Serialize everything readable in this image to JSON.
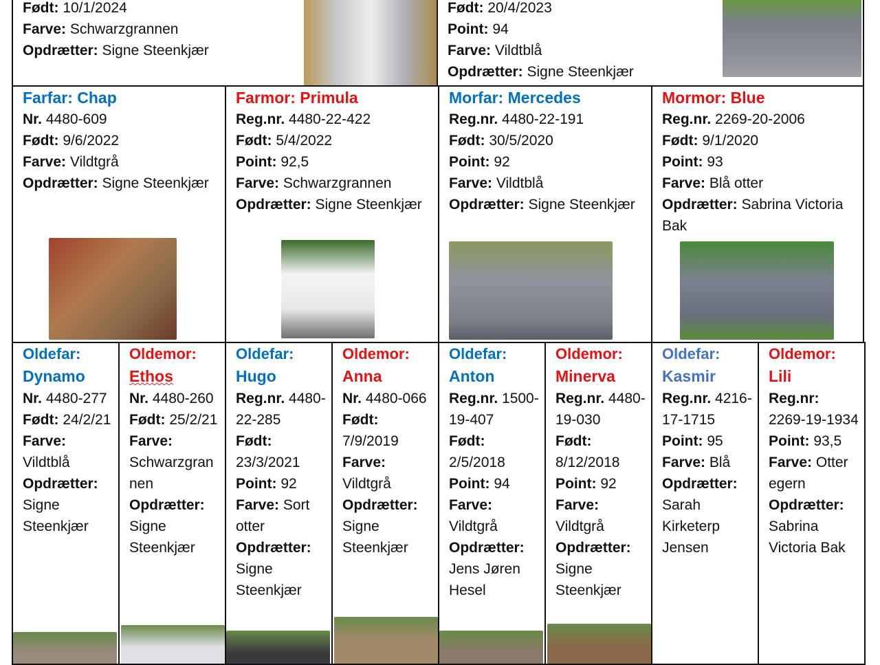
{
  "colors": {
    "male": "#0070c0",
    "male_light": "#4472c4",
    "female": "#e81010",
    "border": "#111111"
  },
  "parents": [
    {
      "fields": [
        {
          "label": "Født:",
          "value": "10/1/2024"
        },
        {
          "label": "Farve:",
          "value": "Schwarzgrannen"
        },
        {
          "label": "Opdrætter:",
          "value": "Signe Steenkjær"
        }
      ],
      "photo": "rabbit-photo-grey-white-on-straw"
    },
    {
      "fields": [
        {
          "label": "Født:",
          "value": "20/4/2023"
        },
        {
          "label": "Point:",
          "value": "94"
        },
        {
          "label": "Farve:",
          "value": "Vildtblå"
        },
        {
          "label": "Opdrætter:",
          "value": "Signe Steenkjær"
        }
      ],
      "photo": "rabbit-photo-blue-grey-on-stone"
    }
  ],
  "grandparents": [
    {
      "role": "Farfar:",
      "name": "Chap",
      "sex": "male",
      "fields": [
        {
          "label": "Nr.",
          "value": "4480-609"
        },
        {
          "label": "Født:",
          "value": "9/6/2022"
        },
        {
          "label": "Farve:",
          "value": "Vildtgrå"
        },
        {
          "label": "Opdrætter:",
          "value": "Signe Steenkjær"
        }
      ],
      "photo": "rabbit-photo-brown-by-brick-wall"
    },
    {
      "role": "Farmor:",
      "name": "Primula",
      "sex": "female",
      "fields": [
        {
          "label": "Reg.nr.",
          "value": "4480-22-422"
        },
        {
          "label": "Født:",
          "value": "5/4/2022"
        },
        {
          "label": "Point:",
          "value": "92,5"
        },
        {
          "label": "Farve:",
          "value": "Schwarzgrannen"
        },
        {
          "label": "Opdrætter:",
          "value": "Signe Steenkjær"
        }
      ],
      "photo": "rabbit-photo-white"
    },
    {
      "role": "Morfar:",
      "name": "Mercedes",
      "sex": "male",
      "fields": [
        {
          "label": "Reg.nr.",
          "value": "4480-22-191"
        },
        {
          "label": "Født:",
          "value": "30/5/2020"
        },
        {
          "label": "Point:",
          "value": "92"
        },
        {
          "label": "Farve:",
          "value": "Vildtblå"
        },
        {
          "label": "Opdrætter:",
          "value": "Signe Steenkjær"
        }
      ],
      "photo": "rabbit-photo-grey"
    },
    {
      "role": "Mormor:",
      "name": "Blue",
      "sex": "female",
      "fields": [
        {
          "label": "Reg.nr.",
          "value": "2269-20-2006"
        },
        {
          "label": "Født:",
          "value": "9/1/2020"
        },
        {
          "label": "Point:",
          "value": "93"
        },
        {
          "label": "Farve:",
          "value": "Blå otter"
        },
        {
          "label": "Opdrætter:",
          "value": "Sabrina Victoria Bak"
        }
      ],
      "photo": "rabbit-photo-blue-on-grass"
    }
  ],
  "great_grandparents": [
    {
      "role": "Oldefar:",
      "name": "Dynamo",
      "sex": "male",
      "fields": [
        {
          "label": "Nr.",
          "value": "4480-277"
        },
        {
          "label": "Født:",
          "value": "24/2/21"
        },
        {
          "label": "Farve:",
          "value": "Vildtblå"
        },
        {
          "label": "Opdrætter:",
          "value": "Signe Steenkjær"
        }
      ]
    },
    {
      "role": "Oldemor:",
      "name": "Ethos",
      "sex": "female",
      "squiggle": true,
      "fields": [
        {
          "label": "Nr.",
          "value": "4480-260"
        },
        {
          "label": "Født:",
          "value": "25/2/21"
        },
        {
          "label": "Farve:",
          "value": "Schwarzgrannen"
        },
        {
          "label": "Opdrætter:",
          "value": "Signe Steenkjær"
        }
      ]
    },
    {
      "role": "Oldefar:",
      "name": "Hugo",
      "sex": "male",
      "fields": [
        {
          "label": "Reg.nr.",
          "value": "4480-22-285"
        },
        {
          "label": "Født:",
          "value": "23/3/2021"
        },
        {
          "label": "Point:",
          "value": "92"
        },
        {
          "label": "Farve:",
          "value": "Sort otter"
        },
        {
          "label": "Opdrætter:",
          "value": "Signe Steenkjær"
        }
      ]
    },
    {
      "role": "Oldemor:",
      "name": "Anna",
      "sex": "female",
      "fields": [
        {
          "label": "Nr.",
          "value": "4480-066"
        },
        {
          "label": "Født:",
          "value": "7/9/2019"
        },
        {
          "label": "Farve:",
          "value": "Vildtgrå"
        },
        {
          "label": "Opdrætter:",
          "value": "Signe Steenkjær"
        }
      ]
    },
    {
      "role": "Oldefar:",
      "name": "Anton",
      "sex": "male",
      "fields": [
        {
          "label": "Reg.nr.",
          "value": "1500-19-407"
        },
        {
          "label": "Født:",
          "value": "2/5/2018"
        },
        {
          "label": "Point:",
          "value": "94"
        },
        {
          "label": "Farve:",
          "value": "Vildtgrå"
        },
        {
          "label": "Opdrætter:",
          "value": "Jens Jøren Hesel"
        }
      ]
    },
    {
      "role": "Oldemor:",
      "name": "Minerva",
      "sex": "female",
      "fields": [
        {
          "label": "Reg.nr.",
          "value": "4480-19-030"
        },
        {
          "label": "Født:",
          "value": "8/12/2018"
        },
        {
          "label": "Point:",
          "value": "92"
        },
        {
          "label": "Farve:",
          "value": "Vildtgrå"
        },
        {
          "label": "Opdrætter:",
          "value": "Signe Steenkjær"
        }
      ]
    },
    {
      "role": "Oldefar:",
      "name": "Kasmir",
      "sex": "male_light",
      "fields": [
        {
          "label": "Reg.nr.",
          "value": "4216-17-1715"
        },
        {
          "label": "Point:",
          "value": "95"
        },
        {
          "label": "Farve:",
          "value": "Blå"
        },
        {
          "label": "Opdrætter:",
          "value": "Sarah Kirketerp Jensen"
        }
      ]
    },
    {
      "role": "Oldemor:",
      "name": "Lili",
      "sex": "female",
      "fields": [
        {
          "label": "Reg.nr:",
          "value": "2269-19-1934"
        },
        {
          "label": "Point:",
          "value": "93,5"
        },
        {
          "label": "Farve:",
          "value": "Otter egern"
        },
        {
          "label": "Opdrætter:",
          "value": "Sabrina Victoria Bak"
        }
      ]
    }
  ]
}
